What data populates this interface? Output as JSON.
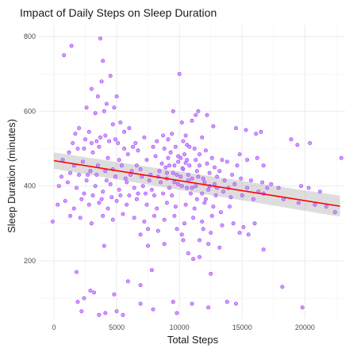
{
  "chart_data": {
    "type": "scatter",
    "title": "Impact of Daily Steps on Sleep Duration",
    "xlabel": "Total Steps",
    "ylabel": "Sleep Duration (minutes)",
    "xlim": [
      -1200,
      23200
    ],
    "ylim": [
      45,
      830
    ],
    "x_ticks": [
      0,
      5000,
      10000,
      15000,
      20000
    ],
    "x_tick_labels": [
      "0",
      "5000",
      "10000",
      "15000",
      "20000"
    ],
    "y_ticks": [
      200,
      400,
      600,
      800
    ],
    "y_tick_labels": [
      "200",
      "400",
      "600",
      "800"
    ],
    "grid": true,
    "point_color": "#c77cff",
    "trend": {
      "method": "linear regression with confidence band",
      "color": "#ff0000",
      "band_color": "#b3b3b3",
      "x": [
        0,
        22800
      ],
      "y": [
        468,
        346
      ],
      "band_lower": [
        446,
        318
      ],
      "band_upper": [
        490,
        374
      ]
    },
    "points": [
      [
        800,
        750
      ],
      [
        1400,
        775
      ],
      [
        3700,
        795
      ],
      [
        3900,
        735
      ],
      [
        3000,
        660
      ],
      [
        3800,
        680
      ],
      [
        4500,
        695
      ],
      [
        10000,
        700
      ],
      [
        3500,
        640
      ],
      [
        4200,
        620
      ],
      [
        5000,
        640
      ],
      [
        4800,
        610
      ],
      [
        2600,
        610
      ],
      [
        4000,
        600
      ],
      [
        3300,
        595
      ],
      [
        9500,
        600
      ],
      [
        11500,
        600
      ],
      [
        11000,
        575
      ],
      [
        11300,
        590
      ],
      [
        12200,
        590
      ],
      [
        10200,
        570
      ],
      [
        12700,
        560
      ],
      [
        14500,
        555
      ],
      [
        15300,
        550
      ],
      [
        16500,
        545
      ],
      [
        16100,
        540
      ],
      [
        18900,
        525
      ],
      [
        19400,
        510
      ],
      [
        20400,
        515
      ],
      [
        5300,
        570
      ],
      [
        6000,
        555
      ],
      [
        4700,
        565
      ],
      [
        2000,
        555
      ],
      [
        1700,
        540
      ],
      [
        2800,
        545
      ],
      [
        3400,
        520
      ],
      [
        4100,
        535
      ],
      [
        4900,
        525
      ],
      [
        5600,
        545
      ],
      [
        6500,
        515
      ],
      [
        7200,
        530
      ],
      [
        8200,
        520
      ],
      [
        8700,
        535
      ],
      [
        9400,
        540
      ],
      [
        9700,
        505
      ],
      [
        10500,
        535
      ],
      [
        9900,
        480
      ],
      [
        10100,
        475
      ],
      [
        10400,
        485
      ],
      [
        10600,
        470
      ],
      [
        10800,
        455
      ],
      [
        9600,
        455
      ],
      [
        9900,
        465
      ],
      [
        11200,
        500
      ],
      [
        11600,
        485
      ],
      [
        12100,
        495
      ],
      [
        12600,
        475
      ],
      [
        13400,
        470
      ],
      [
        13800,
        465
      ],
      [
        14600,
        455
      ],
      [
        14800,
        485
      ],
      [
        15400,
        470
      ],
      [
        16200,
        475
      ],
      [
        16700,
        455
      ],
      [
        22900,
        475
      ],
      [
        1200,
        490
      ],
      [
        1900,
        500
      ],
      [
        2400,
        500
      ],
      [
        3100,
        490
      ],
      [
        3600,
        505
      ],
      [
        4300,
        475
      ],
      [
        5200,
        470
      ],
      [
        5900,
        485
      ],
      [
        6600,
        455
      ],
      [
        7400,
        470
      ],
      [
        8100,
        480
      ],
      [
        8600,
        460
      ],
      [
        9200,
        455
      ],
      [
        700,
        470
      ],
      [
        1600,
        455
      ],
      [
        2300,
        465
      ],
      [
        2900,
        440
      ],
      [
        3500,
        455
      ],
      [
        4100,
        440
      ],
      [
        4700,
        445
      ],
      [
        5400,
        455
      ],
      [
        6100,
        430
      ],
      [
        6900,
        445
      ],
      [
        7700,
        430
      ],
      [
        8400,
        440
      ],
      [
        9000,
        420
      ],
      [
        9800,
        430
      ],
      [
        10300,
        445
      ],
      [
        10700,
        430
      ],
      [
        11400,
        440
      ],
      [
        11900,
        420
      ],
      [
        12400,
        435
      ],
      [
        13000,
        425
      ],
      [
        13600,
        415
      ],
      [
        14200,
        430
      ],
      [
        14900,
        420
      ],
      [
        15700,
        415
      ],
      [
        16600,
        410
      ],
      [
        17300,
        405
      ],
      [
        17900,
        395
      ],
      [
        19700,
        400
      ],
      [
        20300,
        395
      ],
      [
        21200,
        385
      ],
      [
        400,
        400
      ],
      [
        1100,
        410
      ],
      [
        1800,
        395
      ],
      [
        2600,
        415
      ],
      [
        3300,
        400
      ],
      [
        3900,
        385
      ],
      [
        4500,
        405
      ],
      [
        5200,
        390
      ],
      [
        5800,
        410
      ],
      [
        6400,
        395
      ],
      [
        7100,
        400
      ],
      [
        7800,
        390
      ],
      [
        8500,
        410
      ],
      [
        9200,
        395
      ],
      [
        9900,
        405
      ],
      [
        10600,
        395
      ],
      [
        11300,
        400
      ],
      [
        11800,
        380
      ],
      [
        12300,
        390
      ],
      [
        12900,
        375
      ],
      [
        13500,
        385
      ],
      [
        14100,
        370
      ],
      [
        15000,
        375
      ],
      [
        15900,
        365
      ],
      [
        16700,
        380
      ],
      [
        18300,
        365
      ],
      [
        19500,
        355
      ],
      [
        20800,
        350
      ],
      [
        21700,
        345
      ],
      [
        22400,
        330
      ],
      [
        300,
        350
      ],
      [
        900,
        360
      ],
      [
        1600,
        340
      ],
      [
        2200,
        365
      ],
      [
        2800,
        350
      ],
      [
        3600,
        355
      ],
      [
        4300,
        340
      ],
      [
        5000,
        360
      ],
      [
        5800,
        350
      ],
      [
        6600,
        365
      ],
      [
        7400,
        350
      ],
      [
        8200,
        340
      ],
      [
        9000,
        355
      ],
      [
        9700,
        345
      ],
      [
        10500,
        350
      ],
      [
        11200,
        340
      ],
      [
        12000,
        355
      ],
      [
        12700,
        345
      ],
      [
        13300,
        330
      ],
      [
        14000,
        345
      ],
      [
        -100,
        305
      ],
      [
        1300,
        320
      ],
      [
        2100,
        315
      ],
      [
        3000,
        300
      ],
      [
        3900,
        320
      ],
      [
        4700,
        310
      ],
      [
        5500,
        325
      ],
      [
        6400,
        315
      ],
      [
        7200,
        305
      ],
      [
        8000,
        320
      ],
      [
        8800,
        310
      ],
      [
        9600,
        320
      ],
      [
        10400,
        300
      ],
      [
        11100,
        315
      ],
      [
        11800,
        305
      ],
      [
        12600,
        320
      ],
      [
        13400,
        295
      ],
      [
        14300,
        300
      ],
      [
        15100,
        290
      ],
      [
        16000,
        300
      ],
      [
        6900,
        270
      ],
      [
        7500,
        285
      ],
      [
        8300,
        280
      ],
      [
        9800,
        285
      ],
      [
        10200,
        270
      ],
      [
        11900,
        285
      ],
      [
        12500,
        275
      ],
      [
        14800,
        275
      ],
      [
        15500,
        270
      ],
      [
        4000,
        240
      ],
      [
        7500,
        240
      ],
      [
        8800,
        245
      ],
      [
        10300,
        255
      ],
      [
        11600,
        255
      ],
      [
        12300,
        245
      ],
      [
        13200,
        235
      ],
      [
        16700,
        230
      ],
      [
        10700,
        220
      ],
      [
        11100,
        205
      ],
      [
        11600,
        210
      ],
      [
        1800,
        170
      ],
      [
        7800,
        175
      ],
      [
        12500,
        165
      ],
      [
        5900,
        145
      ],
      [
        6900,
        135
      ],
      [
        2900,
        120
      ],
      [
        3200,
        115
      ],
      [
        4800,
        110
      ],
      [
        18200,
        130
      ],
      [
        2400,
        100
      ],
      [
        1900,
        90
      ],
      [
        6900,
        85
      ],
      [
        9500,
        90
      ],
      [
        11000,
        85
      ],
      [
        13800,
        90
      ],
      [
        14500,
        85
      ],
      [
        2200,
        65
      ],
      [
        3600,
        55
      ],
      [
        4100,
        60
      ],
      [
        5000,
        65
      ],
      [
        5500,
        55
      ],
      [
        7900,
        70
      ],
      [
        9800,
        60
      ],
      [
        12300,
        75
      ],
      [
        19800,
        75
      ],
      [
        10300,
        520
      ],
      [
        10600,
        510
      ],
      [
        9100,
        475
      ],
      [
        9300,
        490
      ],
      [
        8800,
        500
      ],
      [
        7900,
        505
      ],
      [
        6700,
        495
      ],
      [
        6300,
        505
      ],
      [
        5600,
        500
      ],
      [
        5100,
        515
      ],
      [
        4400,
        520
      ],
      [
        3700,
        530
      ],
      [
        3000,
        515
      ],
      [
        2500,
        525
      ],
      [
        1500,
        515
      ],
      [
        10700,
        415
      ],
      [
        11000,
        420
      ],
      [
        11500,
        425
      ],
      [
        12000,
        410
      ],
      [
        12800,
        405
      ],
      [
        10900,
        380
      ],
      [
        11400,
        365
      ],
      [
        12100,
        365
      ],
      [
        9400,
        375
      ],
      [
        8700,
        380
      ],
      [
        8000,
        375
      ],
      [
        7300,
        380
      ],
      [
        6700,
        380
      ],
      [
        6000,
        375
      ],
      [
        5300,
        375
      ],
      [
        4600,
        370
      ],
      [
        3800,
        365
      ],
      [
        3100,
        375
      ],
      [
        2400,
        380
      ],
      [
        10500,
        462
      ],
      [
        10250,
        448
      ],
      [
        10800,
        505
      ],
      [
        11800,
        530
      ],
      [
        9100,
        525
      ],
      [
        8900,
        450
      ],
      [
        9500,
        435
      ],
      [
        10100,
        425
      ],
      [
        11600,
        455
      ],
      [
        12200,
        460
      ],
      [
        12800,
        450
      ],
      [
        13200,
        440
      ],
      [
        14400,
        405
      ],
      [
        15400,
        395
      ],
      [
        16300,
        385
      ],
      [
        17000,
        395
      ],
      [
        13900,
        395
      ],
      [
        11300,
        470
      ],
      [
        7000,
        425
      ],
      [
        6200,
        440
      ],
      [
        5700,
        420
      ],
      [
        4900,
        425
      ],
      [
        4200,
        415
      ],
      [
        3400,
        430
      ],
      [
        2700,
        430
      ],
      [
        2000,
        430
      ],
      [
        1300,
        435
      ],
      [
        600,
        425
      ],
      [
        7600,
        415
      ],
      [
        8300,
        425
      ],
      [
        9000,
        435
      ],
      [
        9600,
        410
      ],
      [
        10200,
        400
      ],
      [
        11000,
        395
      ],
      [
        12400,
        400
      ],
      [
        13000,
        395
      ]
    ]
  }
}
